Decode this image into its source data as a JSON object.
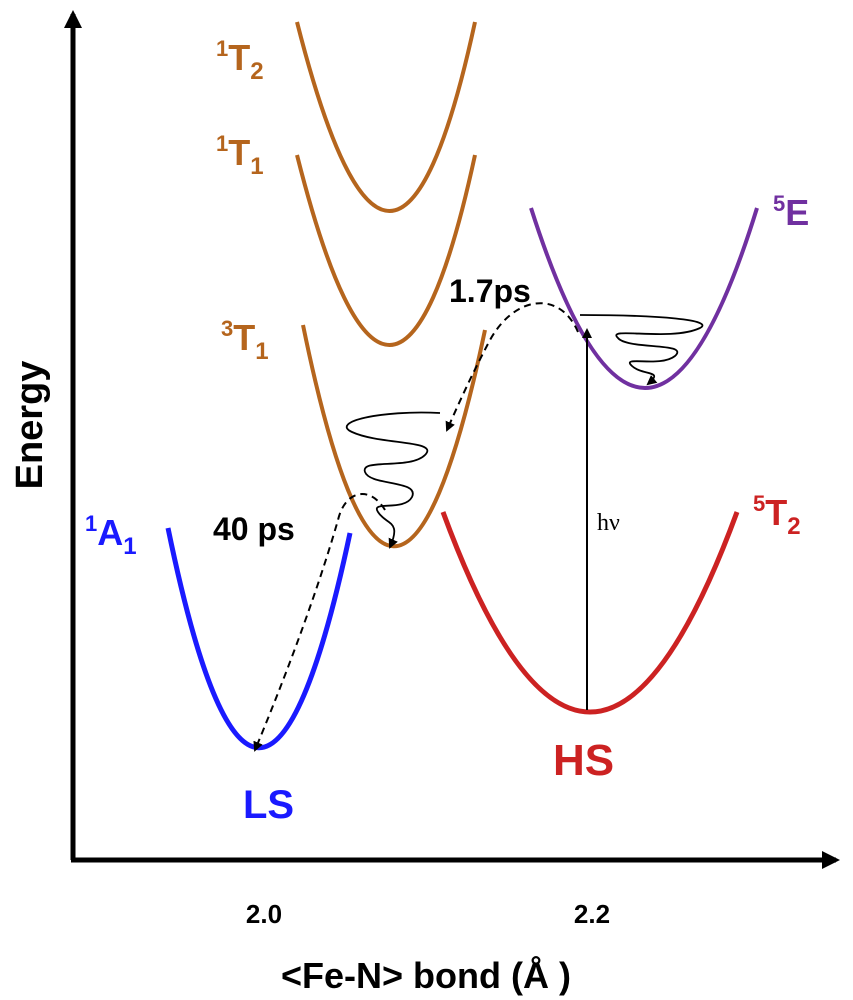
{
  "axes": {
    "y_label": "Energy",
    "x_label": "<Fe-N> bond (Å )",
    "x_ticks": [
      "2.0",
      "2.2"
    ]
  },
  "states": {
    "t2_singlet": {
      "label": "T",
      "sup": "1",
      "sub": "2",
      "color": "#b5651d"
    },
    "t1_singlet": {
      "label": "T",
      "sup": "1",
      "sub": "1",
      "color": "#b5651d"
    },
    "t1_triplet": {
      "label": "T",
      "sup": "3",
      "sub": "1",
      "color": "#b5651d"
    },
    "e_quintet": {
      "label": "E",
      "sup": "5",
      "color": "#7030a0"
    },
    "a1_singlet": {
      "label": "A",
      "sup": "1",
      "sub": "1",
      "color": "#1a1aff"
    },
    "t2_quintet": {
      "label": "T",
      "sup": "5",
      "sub": "2",
      "color": "#cc2222"
    }
  },
  "spin_labels": {
    "ls": "LS",
    "hs": "HS"
  },
  "annotations": {
    "time_fast": "1.7ps",
    "time_slow": "40 ps",
    "photon": "hν"
  }
}
